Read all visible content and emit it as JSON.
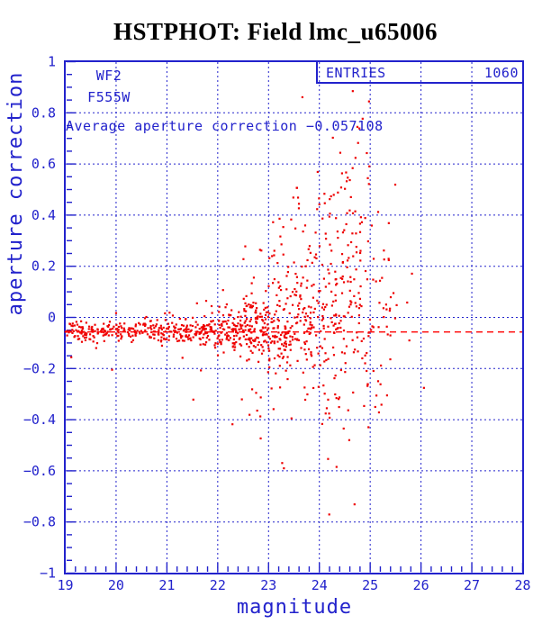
{
  "title": "HSTPHOT: Field lmc_u65006",
  "colors": {
    "title": "#0000D5",
    "blue": "#2222CC",
    "point_red": "#EE0000",
    "mean_line_red": "#FF0000",
    "background": "#FFFFFF"
  },
  "annotations": {
    "camera": "WF2",
    "filter": "F555W",
    "average_label": "Average aperture correction −0.057108"
  },
  "entries_box": {
    "label": "ENTRIES",
    "value": "1060"
  },
  "chart_data": {
    "type": "scatter",
    "title": "HSTPHOT: Field lmc_u65006",
    "xlabel": "magnitude",
    "ylabel": "aperture correction",
    "xlim": [
      19,
      28
    ],
    "ylim": [
      -1,
      1
    ],
    "x_ticks": [
      19,
      20,
      21,
      22,
      23,
      24,
      25,
      26,
      27,
      28
    ],
    "x_tick_labels": [
      "19",
      "20",
      "21",
      "22",
      "23",
      "24",
      "25",
      "26",
      "27",
      "28"
    ],
    "y_ticks": [
      -1,
      -0.8,
      -0.6,
      -0.4,
      -0.2,
      0,
      0.2,
      0.4,
      0.6,
      0.8,
      1
    ],
    "y_tick_labels": [
      "−1",
      "−0.8",
      "−0.6",
      "−0.4",
      "−0.2",
      "0",
      "0.2",
      "0.4",
      "0.6",
      "0.8",
      "1"
    ],
    "x_minor_step": 0.2,
    "y_minor_step": 0.05,
    "grid": "blue dashed lines at integer magnitudes and every 0.2 in y",
    "legend_position": "none",
    "entries": 1060,
    "average_aperture_correction": -0.057108,
    "mean_line_y": -0.057108,
    "points_seed": 7,
    "points_description": "1060 stars: tight band near y=-0.055 for mag 19-22, scatter widening from mag 22.5, broad cloud skewed positive for mag 23.5-25, nearly empty beyond mag 25.5",
    "points_bins": [
      {
        "x_min": 19.0,
        "x_max": 19.5,
        "count": 55,
        "center": -0.055,
        "sigma": 0.02,
        "skew": 0.0,
        "outlier_frac": 0.02,
        "outlier_lo": -0.16,
        "outlier_hi": 0.02
      },
      {
        "x_min": 19.5,
        "x_max": 20.0,
        "count": 50,
        "center": -0.055,
        "sigma": 0.02,
        "skew": 0.0,
        "outlier_frac": 0.02,
        "outlier_lo": -0.25,
        "outlier_hi": 0.02
      },
      {
        "x_min": 20.0,
        "x_max": 20.5,
        "count": 50,
        "center": -0.055,
        "sigma": 0.022,
        "skew": 0.0,
        "outlier_frac": 0.03,
        "outlier_lo": -0.28,
        "outlier_hi": 0.03
      },
      {
        "x_min": 20.5,
        "x_max": 21.0,
        "count": 55,
        "center": -0.055,
        "sigma": 0.022,
        "skew": 0.0,
        "outlier_frac": 0.03,
        "outlier_lo": -0.3,
        "outlier_hi": 0.05
      },
      {
        "x_min": 21.0,
        "x_max": 21.5,
        "count": 60,
        "center": -0.055,
        "sigma": 0.025,
        "skew": 0.0,
        "outlier_frac": 0.04,
        "outlier_lo": -0.35,
        "outlier_hi": 0.05
      },
      {
        "x_min": 21.5,
        "x_max": 22.0,
        "count": 75,
        "center": -0.055,
        "sigma": 0.028,
        "skew": 0.0,
        "outlier_frac": 0.05,
        "outlier_lo": -0.4,
        "outlier_hi": 0.08
      },
      {
        "x_min": 22.0,
        "x_max": 22.5,
        "count": 95,
        "center": -0.05,
        "sigma": 0.04,
        "skew": 0.1,
        "outlier_frac": 0.08,
        "outlier_lo": -0.45,
        "outlier_hi": 0.12
      },
      {
        "x_min": 22.5,
        "x_max": 23.0,
        "count": 130,
        "center": -0.04,
        "sigma": 0.055,
        "skew": 0.3,
        "outlier_frac": 0.09,
        "outlier_lo": -0.5,
        "outlier_hi": 0.3
      },
      {
        "x_min": 23.0,
        "x_max": 23.5,
        "count": 125,
        "center": -0.03,
        "sigma": 0.09,
        "skew": 0.5,
        "outlier_frac": 0.09,
        "outlier_lo": -0.65,
        "outlier_hi": 0.55
      },
      {
        "x_min": 23.5,
        "x_max": 24.0,
        "count": 110,
        "center": -0.02,
        "sigma": 0.14,
        "skew": 0.6,
        "outlier_frac": 0.08,
        "outlier_lo": -0.75,
        "outlier_hi": 0.9
      },
      {
        "x_min": 24.0,
        "x_max": 24.5,
        "count": 115,
        "center": 0.02,
        "sigma": 0.2,
        "skew": 0.5,
        "outlier_frac": 0.06,
        "outlier_lo": -0.9,
        "outlier_hi": 0.85
      },
      {
        "x_min": 24.5,
        "x_max": 25.0,
        "count": 95,
        "center": 0.08,
        "sigma": 0.24,
        "skew": 0.4,
        "outlier_frac": 0.05,
        "outlier_lo": -0.85,
        "outlier_hi": 0.75
      },
      {
        "x_min": 25.0,
        "x_max": 25.5,
        "count": 40,
        "center": 0.0,
        "sigma": 0.25,
        "skew": 0.3,
        "outlier_frac": 0.05,
        "outlier_lo": -0.6,
        "outlier_hi": 0.65
      },
      {
        "x_min": 25.5,
        "x_max": 26.1,
        "count": 5,
        "center": -0.1,
        "sigma": 0.2,
        "skew": 0.0,
        "outlier_frac": 0.2,
        "outlier_lo": -0.5,
        "outlier_hi": 0.3
      }
    ]
  }
}
